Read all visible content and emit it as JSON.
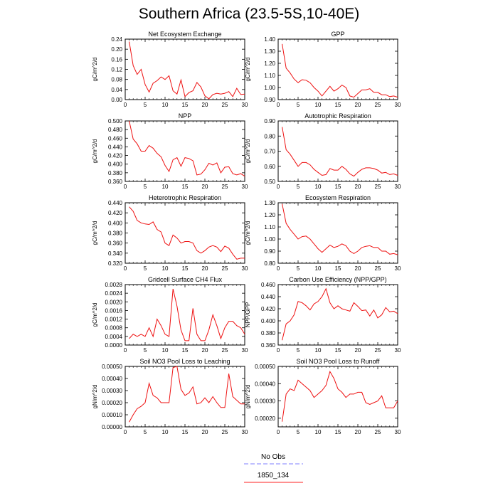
{
  "title": "Southern Africa (23.5-5S,10-40E)",
  "legend": {
    "entries": [
      {
        "label": "No Obs",
        "color": "#9999ff",
        "dash": true
      },
      {
        "label": "1850_134",
        "color": "#ff4d4d",
        "dash": false
      }
    ]
  },
  "colors": {
    "series": "#ee1111",
    "axis": "#000000"
  },
  "chart_data": [
    {
      "type": "line",
      "title": "Net Ecosystem Exchange",
      "xlabel": "",
      "ylabel": "gC/m^2/d",
      "xlim": [
        0,
        30
      ],
      "ylim": [
        0,
        0.24
      ],
      "xticks": [
        0,
        5,
        10,
        15,
        20,
        25,
        30
      ],
      "yticks": [
        0,
        0.04,
        0.08,
        0.12,
        0.16,
        0.2,
        0.24
      ],
      "ytick_labels": [
        "0.00",
        "0.04",
        "0.08",
        "0.12",
        "0.16",
        "0.20",
        "0.24"
      ],
      "series": [
        {
          "x": [
            1,
            2,
            3,
            4,
            5,
            6,
            7,
            8,
            9,
            10,
            11,
            12,
            13,
            14,
            15,
            16,
            17,
            18,
            19,
            20,
            21,
            22,
            23,
            24,
            25,
            26,
            27,
            28,
            29,
            30
          ],
          "values": [
            0.23,
            0.135,
            0.1,
            0.12,
            0.06,
            0.03,
            0.065,
            0.075,
            0.09,
            0.08,
            0.095,
            0.035,
            0.022,
            0.078,
            0.012,
            0.028,
            0.035,
            0.068,
            0.05,
            0.015,
            0.003,
            0.02,
            0.025,
            0.022,
            0.025,
            0.032,
            0.012,
            0.045,
            0.02,
            0.022
          ]
        }
      ]
    },
    {
      "type": "line",
      "title": "GPP",
      "xlabel": "",
      "ylabel": "gC/m^2/d",
      "xlim": [
        0,
        30
      ],
      "ylim": [
        0.9,
        1.4
      ],
      "xticks": [
        0,
        5,
        10,
        15,
        20,
        25,
        30
      ],
      "yticks": [
        0.9,
        1.0,
        1.1,
        1.2,
        1.3,
        1.4
      ],
      "ytick_labels": [
        "0.90",
        "1.00",
        "1.10",
        "1.20",
        "1.30",
        "1.40"
      ],
      "series": [
        {
          "x": [
            1,
            2,
            3,
            4,
            5,
            6,
            7,
            8,
            9,
            10,
            11,
            12,
            13,
            14,
            15,
            16,
            17,
            18,
            19,
            20,
            21,
            22,
            23,
            24,
            25,
            26,
            27,
            28,
            29,
            30
          ],
          "values": [
            1.36,
            1.16,
            1.12,
            1.07,
            1.04,
            1.065,
            1.06,
            1.04,
            1.0,
            0.97,
            0.93,
            0.97,
            1.01,
            0.97,
            0.99,
            1.02,
            1.0,
            0.93,
            0.92,
            0.95,
            0.98,
            0.98,
            0.99,
            0.96,
            0.96,
            0.94,
            0.94,
            0.925,
            0.93,
            0.92
          ]
        }
      ]
    },
    {
      "type": "line",
      "title": "NPP",
      "xlabel": "",
      "ylabel": "gC/m^2/d",
      "xlim": [
        0,
        30
      ],
      "ylim": [
        0.36,
        0.5
      ],
      "xticks": [
        0,
        5,
        10,
        15,
        20,
        25,
        30
      ],
      "yticks": [
        0.36,
        0.38,
        0.4,
        0.42,
        0.44,
        0.46,
        0.48,
        0.5
      ],
      "ytick_labels": [
        "0.360",
        "0.380",
        "0.400",
        "0.420",
        "0.440",
        "0.460",
        "0.480",
        "0.500"
      ],
      "series": [
        {
          "x": [
            1,
            2,
            3,
            4,
            5,
            6,
            7,
            8,
            9,
            10,
            11,
            12,
            13,
            14,
            15,
            16,
            17,
            18,
            19,
            20,
            21,
            22,
            23,
            24,
            25,
            26,
            27,
            28,
            29,
            30
          ],
          "values": [
            0.5,
            0.458,
            0.447,
            0.43,
            0.43,
            0.443,
            0.437,
            0.425,
            0.417,
            0.397,
            0.383,
            0.41,
            0.415,
            0.395,
            0.415,
            0.413,
            0.408,
            0.375,
            0.377,
            0.387,
            0.402,
            0.398,
            0.403,
            0.38,
            0.393,
            0.394,
            0.378,
            0.375,
            0.378,
            0.372
          ]
        }
      ]
    },
    {
      "type": "line",
      "title": "Autotrophic Respiration",
      "xlabel": "",
      "ylabel": "gC/m^2/d",
      "xlim": [
        0,
        30
      ],
      "ylim": [
        0.5,
        0.9
      ],
      "xticks": [
        0,
        5,
        10,
        15,
        20,
        25,
        30
      ],
      "yticks": [
        0.5,
        0.6,
        0.7,
        0.8,
        0.9
      ],
      "ytick_labels": [
        "0.50",
        "0.60",
        "0.70",
        "0.80",
        "0.90"
      ],
      "series": [
        {
          "x": [
            1,
            2,
            3,
            4,
            5,
            6,
            7,
            8,
            9,
            10,
            11,
            12,
            13,
            14,
            15,
            16,
            17,
            18,
            19,
            20,
            21,
            22,
            23,
            24,
            25,
            26,
            27,
            28,
            29,
            30
          ],
          "values": [
            0.86,
            0.71,
            0.68,
            0.64,
            0.6,
            0.625,
            0.625,
            0.61,
            0.58,
            0.56,
            0.54,
            0.545,
            0.585,
            0.575,
            0.575,
            0.6,
            0.58,
            0.55,
            0.535,
            0.56,
            0.58,
            0.59,
            0.59,
            0.585,
            0.575,
            0.555,
            0.56,
            0.545,
            0.55,
            0.54
          ]
        }
      ]
    },
    {
      "type": "line",
      "title": "Heterotrophic Respiration",
      "xlabel": "",
      "ylabel": "gC/m^2/d",
      "xlim": [
        0,
        30
      ],
      "ylim": [
        0.32,
        0.44
      ],
      "xticks": [
        0,
        5,
        10,
        15,
        20,
        25,
        30
      ],
      "yticks": [
        0.32,
        0.34,
        0.36,
        0.38,
        0.4,
        0.42,
        0.44
      ],
      "ytick_labels": [
        "0.320",
        "0.340",
        "0.360",
        "0.380",
        "0.400",
        "0.420",
        "0.440"
      ],
      "series": [
        {
          "x": [
            1,
            2,
            3,
            4,
            5,
            6,
            7,
            8,
            9,
            10,
            11,
            12,
            13,
            14,
            15,
            16,
            17,
            18,
            19,
            20,
            21,
            22,
            23,
            24,
            25,
            26,
            27,
            28,
            29,
            30
          ],
          "values": [
            0.432,
            0.423,
            0.405,
            0.4,
            0.398,
            0.397,
            0.402,
            0.387,
            0.382,
            0.36,
            0.355,
            0.376,
            0.37,
            0.36,
            0.363,
            0.363,
            0.36,
            0.345,
            0.34,
            0.345,
            0.352,
            0.355,
            0.352,
            0.343,
            0.354,
            0.35,
            0.338,
            0.328,
            0.33,
            0.33
          ]
        }
      ]
    },
    {
      "type": "line",
      "title": "Ecosystem Respiration",
      "xlabel": "",
      "ylabel": "gC/m^2/d",
      "xlim": [
        0,
        30
      ],
      "ylim": [
        0.8,
        1.3
      ],
      "xticks": [
        0,
        5,
        10,
        15,
        20,
        25,
        30
      ],
      "yticks": [
        0.8,
        0.9,
        1.0,
        1.1,
        1.2,
        1.3
      ],
      "ytick_labels": [
        "0.80",
        "0.90",
        "1.00",
        "1.10",
        "1.20",
        "1.30"
      ],
      "series": [
        {
          "x": [
            1,
            2,
            3,
            4,
            5,
            6,
            7,
            8,
            9,
            10,
            11,
            12,
            13,
            14,
            15,
            16,
            17,
            18,
            19,
            20,
            21,
            22,
            23,
            24,
            25,
            26,
            27,
            28,
            29,
            30
          ],
          "values": [
            1.29,
            1.13,
            1.08,
            1.04,
            1.0,
            1.02,
            1.025,
            1.0,
            0.96,
            0.92,
            0.89,
            0.92,
            0.95,
            0.93,
            0.94,
            0.96,
            0.945,
            0.9,
            0.88,
            0.9,
            0.93,
            0.94,
            0.945,
            0.93,
            0.93,
            0.9,
            0.9,
            0.875,
            0.88,
            0.87
          ]
        }
      ]
    },
    {
      "type": "line",
      "title": "Gridcell Surface CH4 Flux",
      "xlabel": "",
      "ylabel": "gC/m^2/d",
      "xlim": [
        0,
        30
      ],
      "ylim": [
        0,
        0.0028
      ],
      "xticks": [
        0,
        5,
        10,
        15,
        20,
        25,
        30
      ],
      "yticks": [
        0,
        0.0004,
        0.0008,
        0.0012,
        0.0016,
        0.002,
        0.0024,
        0.0028
      ],
      "ytick_labels": [
        "0.0000",
        "0.0004",
        "0.0008",
        "0.0012",
        "0.0016",
        "0.0020",
        "0.0024",
        "0.0028"
      ],
      "series": [
        {
          "x": [
            1,
            2,
            3,
            4,
            5,
            6,
            7,
            8,
            9,
            10,
            11,
            12,
            13,
            14,
            15,
            16,
            17,
            18,
            19,
            20,
            21,
            22,
            23,
            24,
            25,
            26,
            27,
            28,
            29,
            30
          ],
          "values": [
            0.0003,
            0.0005,
            0.0004,
            0.0005,
            0.0004,
            0.0008,
            0.0004,
            0.0012,
            0.0009,
            0.0005,
            0.0004,
            0.0026,
            0.0018,
            0.0007,
            0.0002,
            0.0002,
            0.0017,
            0.0005,
            0.0002,
            0.0002,
            0.0007,
            0.0014,
            0.0009,
            0.0003,
            0.0008,
            0.0011,
            0.0011,
            0.0009,
            0.0008,
            0.0005
          ]
        }
      ]
    },
    {
      "type": "line",
      "title": "Carbon Use Efficiency (NPP/GPP)",
      "xlabel": "",
      "ylabel": "NPP/GPP",
      "xlim": [
        0,
        30
      ],
      "ylim": [
        0.36,
        0.46
      ],
      "xticks": [
        0,
        5,
        10,
        15,
        20,
        25,
        30
      ],
      "yticks": [
        0.36,
        0.38,
        0.4,
        0.42,
        0.44,
        0.46
      ],
      "ytick_labels": [
        "0.360",
        "0.380",
        "0.400",
        "0.420",
        "0.440",
        "0.460"
      ],
      "series": [
        {
          "x": [
            1,
            2,
            3,
            4,
            5,
            6,
            7,
            8,
            9,
            10,
            11,
            12,
            13,
            14,
            15,
            16,
            17,
            18,
            19,
            20,
            21,
            22,
            23,
            24,
            25,
            26,
            27,
            28,
            29,
            30
          ],
          "values": [
            0.368,
            0.395,
            0.4,
            0.41,
            0.432,
            0.43,
            0.425,
            0.418,
            0.428,
            0.432,
            0.44,
            0.453,
            0.43,
            0.42,
            0.425,
            0.42,
            0.418,
            0.416,
            0.43,
            0.424,
            0.417,
            0.418,
            0.408,
            0.418,
            0.405,
            0.41,
            0.422,
            0.415,
            0.416,
            0.412
          ]
        }
      ]
    },
    {
      "type": "line",
      "title": "Soil NO3 Pool Loss to Leaching",
      "xlabel": "",
      "ylabel": "gN/m^2/d",
      "xlim": [
        0,
        30
      ],
      "ylim": [
        0,
        0.0005
      ],
      "xticks": [
        0,
        5,
        10,
        15,
        20,
        25,
        30
      ],
      "yticks": [
        0,
        0.0001,
        0.0002,
        0.0003,
        0.0004,
        0.0005
      ],
      "ytick_labels": [
        "0.00000",
        "0.00010",
        "0.00020",
        "0.00030",
        "0.00040",
        "0.00050"
      ],
      "series": [
        {
          "x": [
            1,
            2,
            3,
            4,
            5,
            6,
            7,
            8,
            9,
            10,
            11,
            12,
            13,
            14,
            15,
            16,
            17,
            18,
            19,
            20,
            21,
            22,
            23,
            24,
            25,
            26,
            27,
            28,
            29,
            30
          ],
          "values": [
            4e-05,
            0.0001,
            0.00015,
            0.00017,
            0.0002,
            0.00036,
            0.00026,
            0.00024,
            0.0002,
            0.0002,
            0.0002,
            0.00049,
            0.0005,
            0.00031,
            0.00026,
            0.00028,
            0.00033,
            0.00019,
            0.0002,
            0.00024,
            0.0002,
            0.00025,
            0.0002,
            0.00016,
            0.00016,
            0.00044,
            0.00025,
            0.00022,
            0.00019,
            0.00019
          ]
        }
      ]
    },
    {
      "type": "line",
      "title": "Soil NO3 Pool Loss to Runoff",
      "xlabel": "",
      "ylabel": "gN/m^2/d",
      "xlim": [
        0,
        30
      ],
      "ylim": [
        0.00015,
        0.0005
      ],
      "xticks": [
        0,
        5,
        10,
        15,
        20,
        25,
        30
      ],
      "yticks": [
        0.0002,
        0.0003,
        0.0004,
        0.0005
      ],
      "ytick_labels": [
        "0.00020",
        "0.00030",
        "0.00040",
        "0.00050"
      ],
      "series": [
        {
          "x": [
            1,
            2,
            3,
            4,
            5,
            6,
            7,
            8,
            9,
            10,
            11,
            12,
            13,
            14,
            15,
            16,
            17,
            18,
            19,
            20,
            21,
            22,
            23,
            24,
            25,
            26,
            27,
            28,
            29,
            30
          ],
          "values": [
            0.00018,
            0.00034,
            0.00037,
            0.00036,
            0.00042,
            0.0004,
            0.00038,
            0.00036,
            0.00032,
            0.00034,
            0.00036,
            0.00039,
            0.00047,
            0.00043,
            0.00037,
            0.00035,
            0.00032,
            0.00034,
            0.00034,
            0.00035,
            0.00035,
            0.00029,
            0.00028,
            0.00029,
            0.0003,
            0.00033,
            0.00026,
            0.00026,
            0.00026,
            0.0003
          ]
        }
      ]
    }
  ]
}
